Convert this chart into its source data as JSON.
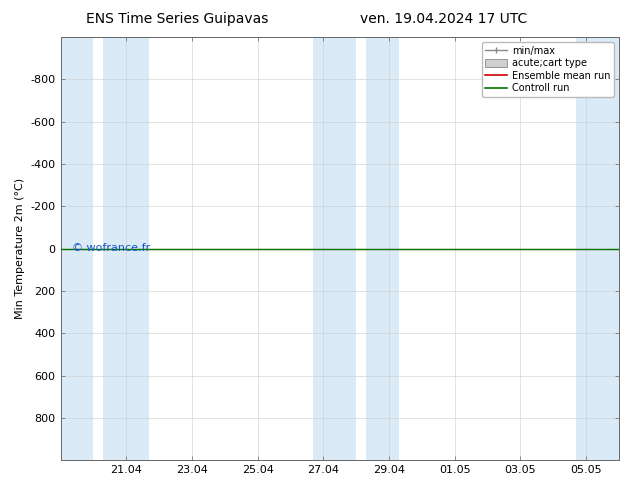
{
  "title": "ENS Time Series Guipavas",
  "title2": "ven. 19.04.2024 17 UTC",
  "ylabel": "Min Temperature 2m (°C)",
  "ylim_top": -1000,
  "ylim_bottom": 1000,
  "yticks": [
    -800,
    -600,
    -400,
    -200,
    0,
    200,
    400,
    600,
    800
  ],
  "xtick_labels": [
    "21.04",
    "23.04",
    "25.04",
    "27.04",
    "29.04",
    "01.05",
    "03.05",
    "05.05"
  ],
  "xtick_positions": [
    2,
    4,
    6,
    8,
    10,
    12,
    14,
    16
  ],
  "xlim": [
    0,
    17
  ],
  "shaded_bands": [
    [
      0,
      1.0
    ],
    [
      1.3,
      2.7
    ],
    [
      7.7,
      9.0
    ],
    [
      9.3,
      10.3
    ],
    [
      15.7,
      17.0
    ]
  ],
  "band_color": "#dbeaf7",
  "line_y": 0,
  "line_color_ensemble": "#cc0000",
  "line_color_control": "#007700",
  "watermark": "© wofrance.fr",
  "watermark_color": "#1155cc",
  "legend_entries": [
    "min/max",
    "acute;cart type",
    "Ensemble mean run",
    "Controll run"
  ],
  "legend_colors_fill": [
    "#ffffff",
    "#d9d9d9",
    "#cc0000",
    "#007700"
  ],
  "legend_colors_edge": [
    "#888888",
    "#aaaaaa",
    "#cc0000",
    "#007700"
  ],
  "background_color": "#ffffff",
  "plot_bg_color": "#ffffff",
  "title_fontsize": 10,
  "axis_fontsize": 8,
  "tick_fontsize": 8,
  "legend_fontsize": 7
}
